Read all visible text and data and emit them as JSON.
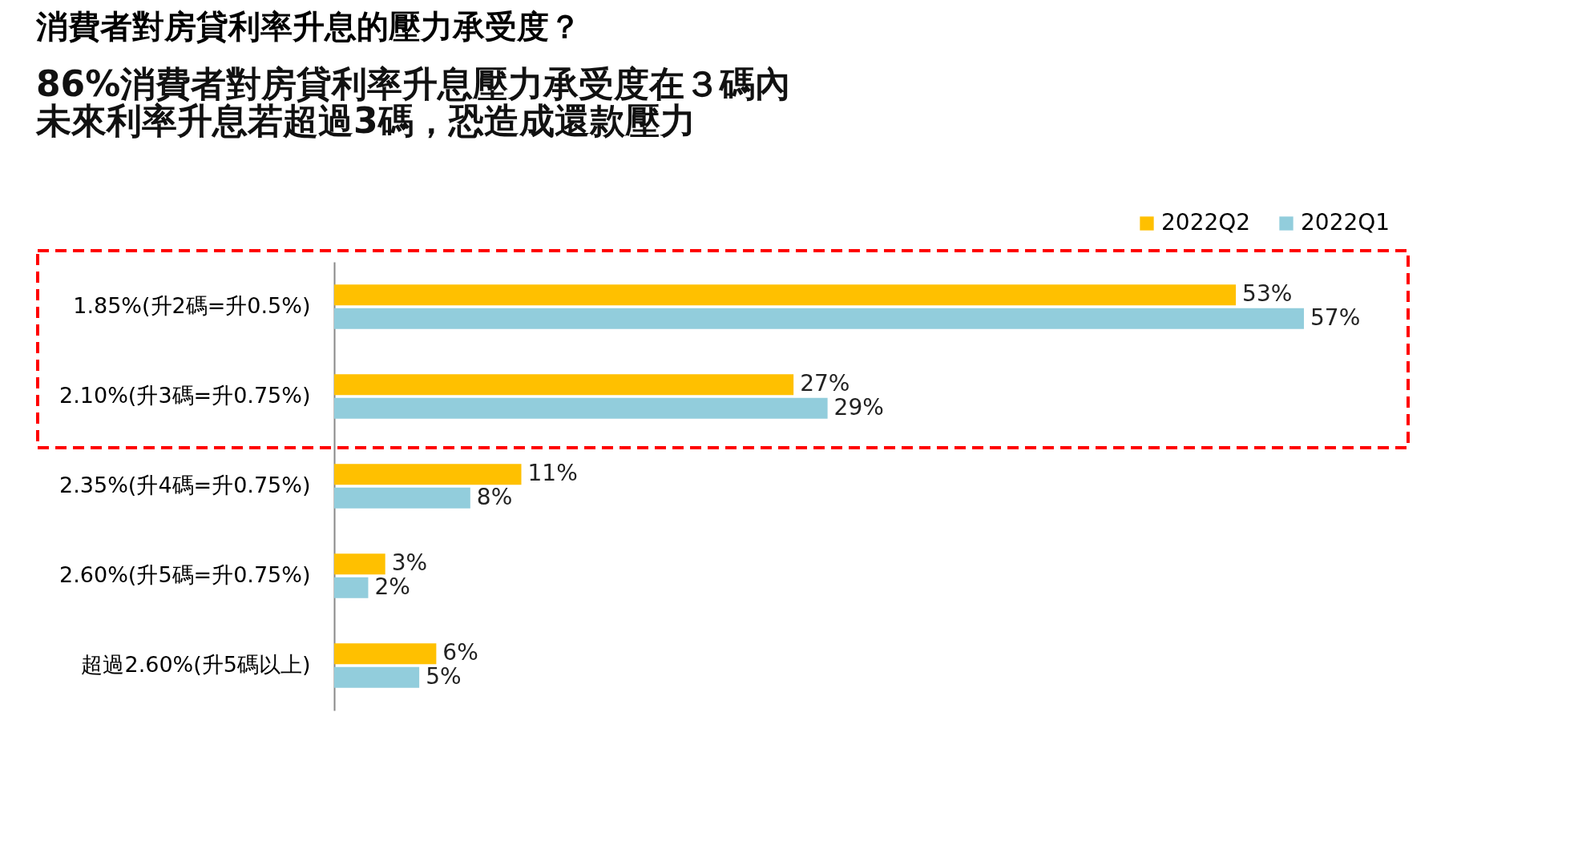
{
  "chart_data": {
    "type": "bar",
    "orientation": "horizontal",
    "title": "消費者對房貸利率升息的壓力承受度？",
    "subtitle": "86%消費者對房貸利率升息壓力承受度在３碼內",
    "annotations": [
      "未來利率升息若超過3碼，恐造成還款壓力"
    ],
    "categories": [
      "1.85%(升2碼=升0.5%)",
      "2.10%(升3碼=升0.75%)",
      "2.35%(升4碼=升0.75%)",
      "2.60%(升5碼=升0.75%)",
      "超過2.60%(升5碼以上)"
    ],
    "series": [
      {
        "name": "2022Q2",
        "color": "#ffc000",
        "values": [
          53,
          27,
          11,
          3,
          6
        ],
        "value_labels": [
          "53%",
          "27%",
          "11%",
          "3%",
          "6%"
        ]
      },
      {
        "name": "2022Q1",
        "color": "#92cddc",
        "values": [
          57,
          29,
          8,
          2,
          5
        ],
        "value_labels": [
          "57%",
          "29%",
          "8%",
          "2%",
          "5%"
        ]
      }
    ],
    "legend": "top right"
  }
}
